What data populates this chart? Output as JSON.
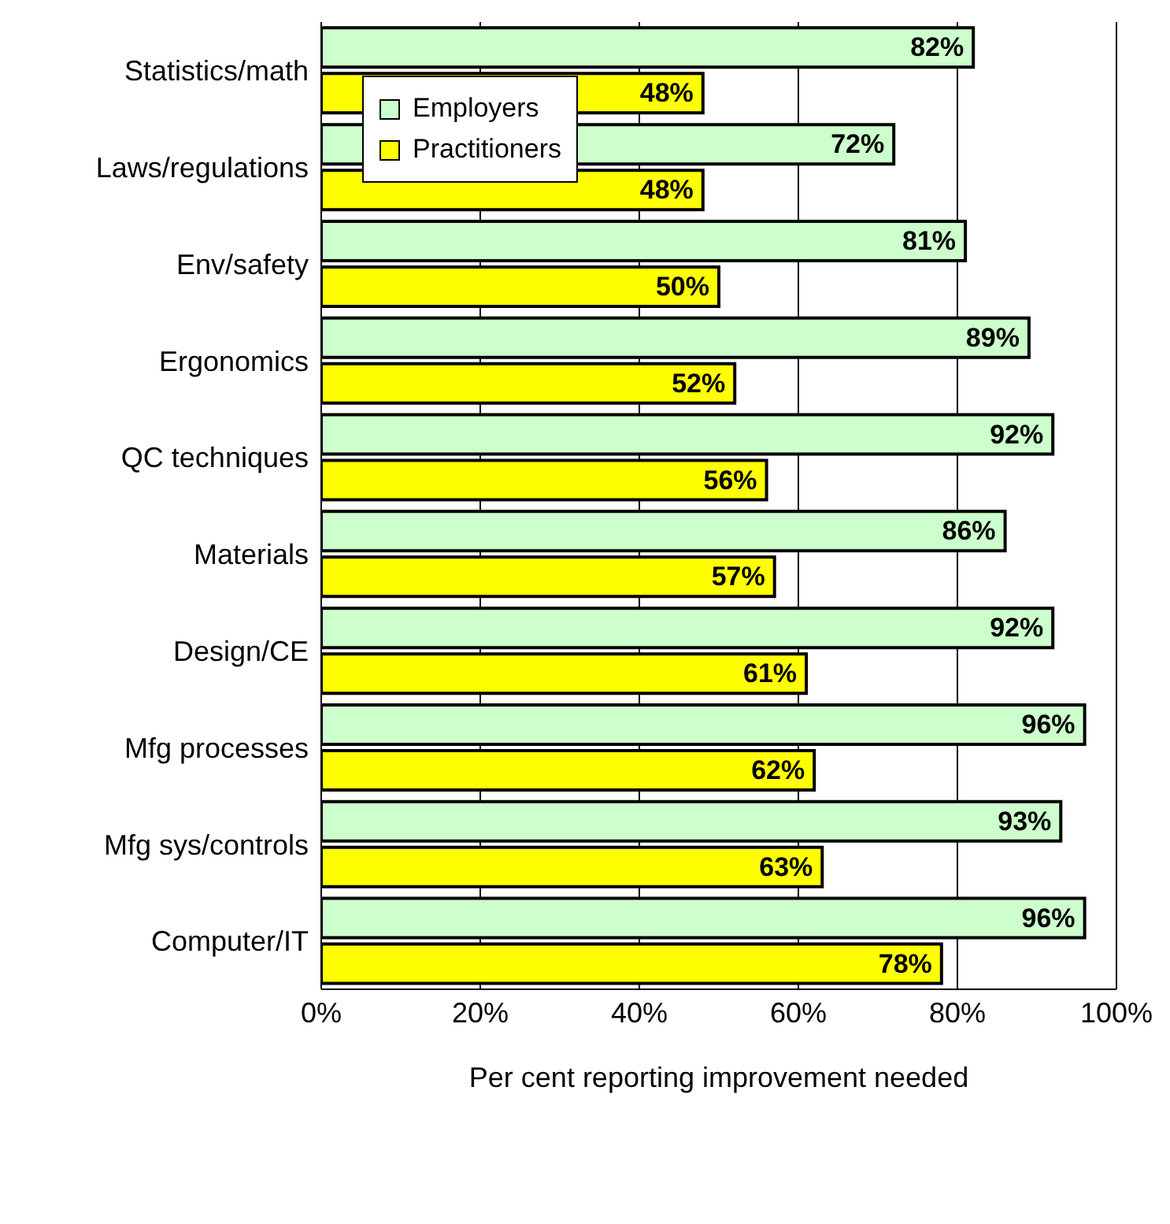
{
  "chart_data": {
    "type": "bar",
    "orientation": "horizontal",
    "xlabel": "Per cent reporting improvement needed",
    "categories": [
      "Statistics/math",
      "Laws/regulations",
      "Env/safety",
      "Ergonomics",
      "QC techniques",
      "Materials",
      "Design/CE",
      "Mfg processes",
      "Mfg sys/controls",
      "Computer/IT"
    ],
    "series": [
      {
        "name": "Employers",
        "color": "#ccffcc",
        "values": [
          82,
          72,
          81,
          89,
          92,
          86,
          92,
          96,
          93,
          96
        ],
        "value_labels": [
          "82%",
          "72%",
          "81%",
          "89%",
          "92%",
          "86%",
          "92%",
          "96%",
          "93%",
          "96%"
        ]
      },
      {
        "name": "Practitioners",
        "color": "#ffff00",
        "values": [
          48,
          48,
          50,
          52,
          56,
          57,
          61,
          62,
          63,
          78
        ],
        "value_labels": [
          "48%",
          "48%",
          "50%",
          "52%",
          "56%",
          "57%",
          "61%",
          "62%",
          "63%",
          "78%"
        ]
      }
    ],
    "xlim": [
      0,
      100
    ],
    "xticks": [
      {
        "value": 0,
        "label": "0%"
      },
      {
        "value": 20,
        "label": "20%"
      },
      {
        "value": 40,
        "label": "40%"
      },
      {
        "value": 60,
        "label": "60%"
      },
      {
        "value": 80,
        "label": "80%"
      },
      {
        "value": 100,
        "label": "100%"
      }
    ],
    "grid": "x",
    "legend": "top left"
  }
}
